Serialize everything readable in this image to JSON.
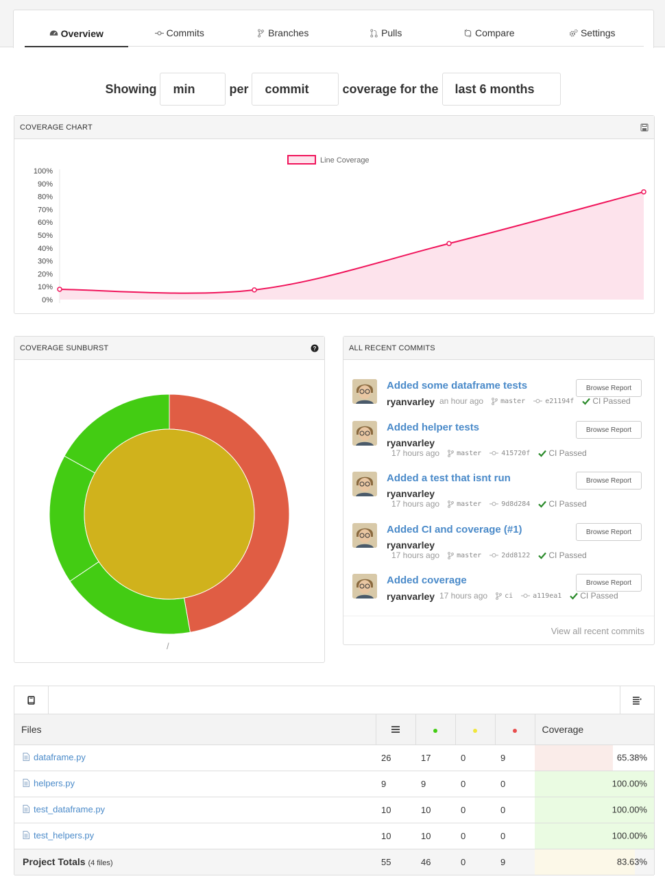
{
  "nav": {
    "tabs": [
      {
        "label": "Overview",
        "icon": "dashboard-icon",
        "active": true
      },
      {
        "label": "Commits",
        "icon": "commit-icon"
      },
      {
        "label": "Branches",
        "icon": "branch-icon"
      },
      {
        "label": "Pulls",
        "icon": "pull-request-icon"
      },
      {
        "label": "Compare",
        "icon": "compare-icon"
      },
      {
        "label": "Settings",
        "icon": "gear-icon"
      }
    ]
  },
  "controls": {
    "showing_label": "Showing",
    "aggregate": "min",
    "per_label": "per",
    "grouping": "commit",
    "coverage_for_label": "coverage for the",
    "range": "last 6 months"
  },
  "coverage_chart": {
    "header": "COVERAGE CHART",
    "save_icon": "save-icon"
  },
  "chart_data": {
    "type": "area",
    "legend": [
      "Line Coverage"
    ],
    "legend_placement": "top-center",
    "y_ticks": [
      "100%",
      "90%",
      "80%",
      "70%",
      "60%",
      "50%",
      "40%",
      "30%",
      "20%",
      "10%",
      "0%"
    ],
    "ylim": [
      0,
      100
    ],
    "series": [
      {
        "name": "Line Coverage",
        "values": [
          8,
          7.5,
          43.5,
          83.6
        ],
        "color": "#f0135a",
        "fill": "#fde3ec"
      }
    ]
  },
  "sunburst": {
    "header": "COVERAGE SUNBURST",
    "help_icon": "question-circle-icon",
    "caption": "/",
    "colors": {
      "covered": "#43cc13",
      "missed": "#e05d44",
      "partial": "#d0b21c"
    }
  },
  "recent_commits": {
    "header": "ALL RECENT COMMITS",
    "browse_label": "Browse Report",
    "view_all": "View all recent commits",
    "items": [
      {
        "title": "Added some dataframe tests",
        "author": "ryanvarley",
        "time": "an hour ago",
        "branch": "master",
        "sha": "e21194f",
        "ci": "CI Passed"
      },
      {
        "title": "Added helper tests",
        "author": "ryanvarley",
        "time": "17 hours ago",
        "branch": "master",
        "sha": "415720f",
        "ci": "CI Passed"
      },
      {
        "title": "Added a test that isnt run",
        "author": "ryanvarley",
        "time": "17 hours ago",
        "branch": "master",
        "sha": "9d8d284",
        "ci": "CI Passed"
      },
      {
        "title": "Added CI and coverage (#1)",
        "author": "ryanvarley",
        "time": "17 hours ago",
        "branch": "master",
        "sha": "2dd8122",
        "ci": "CI Passed"
      },
      {
        "title": "Added coverage",
        "author": "ryanvarley",
        "time": "17 hours ago",
        "branch": "ci",
        "sha": "a119ea1",
        "ci": "CI Passed"
      }
    ]
  },
  "files": {
    "header_files": "Files",
    "header_coverage": "Coverage",
    "rows": [
      {
        "name": "dataframe.py",
        "lines": "26",
        "hits": "17",
        "partials": "0",
        "misses": "9",
        "coverage": "65.38%",
        "pct": 65.38
      },
      {
        "name": "helpers.py",
        "lines": "9",
        "hits": "9",
        "partials": "0",
        "misses": "0",
        "coverage": "100.00%",
        "pct": 100
      },
      {
        "name": "test_dataframe.py",
        "lines": "10",
        "hits": "10",
        "partials": "0",
        "misses": "0",
        "coverage": "100.00%",
        "pct": 100
      },
      {
        "name": "test_helpers.py",
        "lines": "10",
        "hits": "10",
        "partials": "0",
        "misses": "0",
        "coverage": "100.00%",
        "pct": 100
      }
    ],
    "totals": {
      "label": "Project Totals",
      "count_label": "(4 files)",
      "lines": "55",
      "hits": "46",
      "partials": "0",
      "misses": "9",
      "coverage": "83.63%",
      "pct": 83.63
    }
  }
}
